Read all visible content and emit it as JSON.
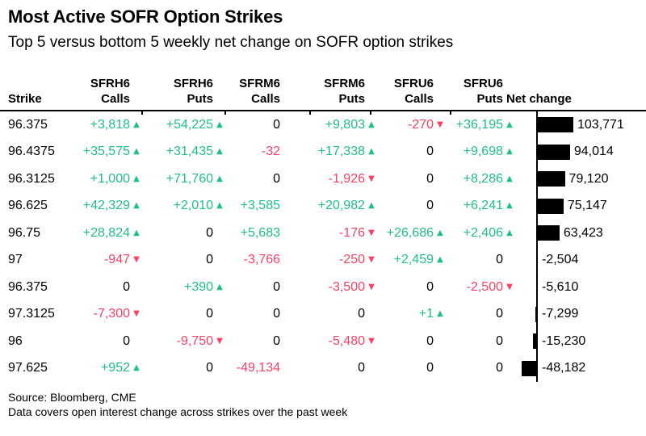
{
  "header": {
    "title": "Most Active SOFR Option Strikes",
    "subtitle": "Top 5 versus bottom 5 weekly net change on SOFR option strikes"
  },
  "colors": {
    "positive": "#1FBE8A",
    "negative": "#FA4164",
    "neutral": "#000000",
    "bar": "#000000"
  },
  "table": {
    "columns": [
      {
        "id": "strike",
        "line1": "",
        "line2": "Strike"
      },
      {
        "id": "sfrh6_calls",
        "line1": "SFRH6",
        "line2": "Calls"
      },
      {
        "id": "sfrh6_puts",
        "line1": "SFRH6",
        "line2": "Puts"
      },
      {
        "id": "sfrm6_calls",
        "line1": "SFRM6",
        "line2": "Calls"
      },
      {
        "id": "sfrm6_puts",
        "line1": "SFRM6",
        "line2": "Puts"
      },
      {
        "id": "sfru6_calls",
        "line1": "SFRU6",
        "line2": "Calls"
      },
      {
        "id": "sfru6_puts",
        "line1": "SFRU6",
        "line2": "Puts"
      },
      {
        "id": "net_change",
        "line1": "",
        "line2": "Net change"
      }
    ]
  },
  "chart_data": {
    "type": "table",
    "note": "net_change column is rendered as a horizontal bar chart with a zero axis; positive bars extend right, negative bars extend left",
    "rows": [
      {
        "strike": "96.375",
        "cells": [
          {
            "display": "+3,818",
            "value": 3818,
            "arrow": "up"
          },
          {
            "display": "+54,225",
            "value": 54225,
            "arrow": "up"
          },
          {
            "display": "0",
            "value": 0,
            "arrow": "none"
          },
          {
            "display": "+9,803",
            "value": 9803,
            "arrow": "up"
          },
          {
            "display": "-270",
            "value": -270,
            "arrow": "down"
          },
          {
            "display": "+36,195",
            "value": 36195,
            "arrow": "up"
          }
        ],
        "net": {
          "display": "103,771",
          "value": 103771
        }
      },
      {
        "strike": "96.4375",
        "cells": [
          {
            "display": "+35,575",
            "value": 35575,
            "arrow": "up"
          },
          {
            "display": "+31,435",
            "value": 31435,
            "arrow": "up"
          },
          {
            "display": "-32",
            "value": -32,
            "arrow": "none"
          },
          {
            "display": "+17,338",
            "value": 17338,
            "arrow": "up"
          },
          {
            "display": "0",
            "value": 0,
            "arrow": "none"
          },
          {
            "display": "+9,698",
            "value": 9698,
            "arrow": "up"
          }
        ],
        "net": {
          "display": "94,014",
          "value": 94014
        }
      },
      {
        "strike": "96.3125",
        "cells": [
          {
            "display": "+1,000",
            "value": 1000,
            "arrow": "up"
          },
          {
            "display": "+71,760",
            "value": 71760,
            "arrow": "up"
          },
          {
            "display": "0",
            "value": 0,
            "arrow": "none"
          },
          {
            "display": "-1,926",
            "value": -1926,
            "arrow": "down"
          },
          {
            "display": "0",
            "value": 0,
            "arrow": "none"
          },
          {
            "display": "+8,286",
            "value": 8286,
            "arrow": "up"
          }
        ],
        "net": {
          "display": "79,120",
          "value": 79120
        }
      },
      {
        "strike": "96.625",
        "cells": [
          {
            "display": "+42,329",
            "value": 42329,
            "arrow": "up"
          },
          {
            "display": "+2,010",
            "value": 2010,
            "arrow": "up"
          },
          {
            "display": "+3,585",
            "value": 3585,
            "arrow": "none"
          },
          {
            "display": "+20,982",
            "value": 20982,
            "arrow": "up"
          },
          {
            "display": "0",
            "value": 0,
            "arrow": "none"
          },
          {
            "display": "+6,241",
            "value": 6241,
            "arrow": "up"
          }
        ],
        "net": {
          "display": "75,147",
          "value": 75147
        }
      },
      {
        "strike": "96.75",
        "cells": [
          {
            "display": "+28,824",
            "value": 28824,
            "arrow": "up"
          },
          {
            "display": "0",
            "value": 0,
            "arrow": "none"
          },
          {
            "display": "+5,683",
            "value": 5683,
            "arrow": "none"
          },
          {
            "display": "-176",
            "value": -176,
            "arrow": "down"
          },
          {
            "display": "+26,686",
            "value": 26686,
            "arrow": "up"
          },
          {
            "display": "+2,406",
            "value": 2406,
            "arrow": "up"
          }
        ],
        "net": {
          "display": "63,423",
          "value": 63423
        }
      },
      {
        "strike": "97",
        "cells": [
          {
            "display": "-947",
            "value": -947,
            "arrow": "down"
          },
          {
            "display": "0",
            "value": 0,
            "arrow": "none"
          },
          {
            "display": "-3,766",
            "value": -3766,
            "arrow": "none"
          },
          {
            "display": "-250",
            "value": -250,
            "arrow": "down"
          },
          {
            "display": "+2,459",
            "value": 2459,
            "arrow": "up"
          },
          {
            "display": "0",
            "value": 0,
            "arrow": "none"
          }
        ],
        "net": {
          "display": "-2,504",
          "value": -2504
        }
      },
      {
        "strike": "96.375",
        "cells": [
          {
            "display": "0",
            "value": 0,
            "arrow": "none"
          },
          {
            "display": "+390",
            "value": 390,
            "arrow": "up"
          },
          {
            "display": "0",
            "value": 0,
            "arrow": "none"
          },
          {
            "display": "-3,500",
            "value": -3500,
            "arrow": "down"
          },
          {
            "display": "0",
            "value": 0,
            "arrow": "none"
          },
          {
            "display": "-2,500",
            "value": -2500,
            "arrow": "down"
          }
        ],
        "net": {
          "display": "-5,610",
          "value": -5610
        }
      },
      {
        "strike": "97.3125",
        "cells": [
          {
            "display": "-7,300",
            "value": -7300,
            "arrow": "down"
          },
          {
            "display": "0",
            "value": 0,
            "arrow": "none"
          },
          {
            "display": "0",
            "value": 0,
            "arrow": "none"
          },
          {
            "display": "0",
            "value": 0,
            "arrow": "none"
          },
          {
            "display": "+1",
            "value": 1,
            "arrow": "up"
          },
          {
            "display": "0",
            "value": 0,
            "arrow": "none"
          }
        ],
        "net": {
          "display": "-7,299",
          "value": -7299
        }
      },
      {
        "strike": "96",
        "cells": [
          {
            "display": "0",
            "value": 0,
            "arrow": "none"
          },
          {
            "display": "-9,750",
            "value": -9750,
            "arrow": "down"
          },
          {
            "display": "0",
            "value": 0,
            "arrow": "none"
          },
          {
            "display": "-5,480",
            "value": -5480,
            "arrow": "down"
          },
          {
            "display": "0",
            "value": 0,
            "arrow": "none"
          },
          {
            "display": "0",
            "value": 0,
            "arrow": "none"
          }
        ],
        "net": {
          "display": "-15,230",
          "value": -15230
        }
      },
      {
        "strike": "97.625",
        "cells": [
          {
            "display": "+952",
            "value": 952,
            "arrow": "up"
          },
          {
            "display": "0",
            "value": 0,
            "arrow": "none"
          },
          {
            "display": "-49,134",
            "value": -49134,
            "arrow": "none"
          },
          {
            "display": "0",
            "value": 0,
            "arrow": "none"
          },
          {
            "display": "0",
            "value": 0,
            "arrow": "none"
          },
          {
            "display": "0",
            "value": 0,
            "arrow": "none"
          }
        ],
        "net": {
          "display": "-48,182",
          "value": -48182
        }
      }
    ]
  },
  "footer": {
    "source": "Source: Bloomberg, CME",
    "note": "Data covers open interest change across strikes over the past week"
  }
}
